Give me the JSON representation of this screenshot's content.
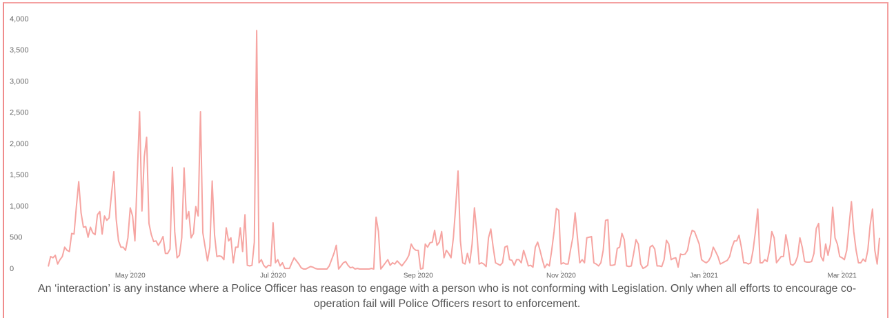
{
  "chart_data": {
    "type": "line",
    "color": "#f6a5a2",
    "xlim": [
      0,
      355
    ],
    "xticks": [
      {
        "value": 35,
        "label": "May 2020"
      },
      {
        "value": 96,
        "label": "Jul 2020"
      },
      {
        "value": 158,
        "label": "Sep 2020"
      },
      {
        "value": 219,
        "label": "Nov 2020"
      },
      {
        "value": 280,
        "label": "Jan 2021"
      },
      {
        "value": 339,
        "label": "Mar 2021"
      }
    ],
    "ylim": [
      0,
      4000
    ],
    "yticks": [
      0,
      500,
      {
        "value": 1000,
        "label": "1,000"
      },
      {
        "value": 1500,
        "label": "1,500"
      },
      {
        "value": 2000,
        "label": "2,000"
      },
      {
        "value": 2500,
        "label": "2,500"
      },
      {
        "value": 3000,
        "label": "3,000"
      },
      {
        "value": 3500,
        "label": "3,500"
      },
      {
        "value": 4000,
        "label": "4,000"
      }
    ],
    "grid": false,
    "values": [
      40,
      200,
      180,
      220,
      80,
      150,
      200,
      350,
      300,
      280,
      570,
      560,
      1000,
      1400,
      900,
      670,
      680,
      510,
      670,
      580,
      550,
      870,
      920,
      560,
      850,
      780,
      820,
      1200,
      1560,
      800,
      450,
      350,
      350,
      300,
      500,
      980,
      850,
      450,
      1500,
      2520,
      930,
      1800,
      2110,
      730,
      550,
      440,
      450,
      380,
      440,
      520,
      250,
      250,
      320,
      1630,
      600,
      180,
      220,
      500,
      1620,
      800,
      920,
      500,
      570,
      1000,
      850,
      2520,
      580,
      350,
      130,
      350,
      1410,
      550,
      200,
      210,
      200,
      150,
      660,
      450,
      500,
      100,
      350,
      350,
      660,
      280,
      870,
      60,
      50,
      60,
      430,
      3820,
      100,
      150,
      60,
      20,
      60,
      50,
      740,
      100,
      150,
      50,
      100,
      10,
      10,
      10,
      100,
      180,
      130,
      80,
      20,
      0,
      0,
      20,
      40,
      30,
      10,
      0,
      0,
      0,
      0,
      0,
      50,
      150,
      250,
      380,
      0,
      50,
      100,
      120,
      60,
      20,
      30,
      0,
      10,
      0,
      0,
      0,
      0,
      0,
      10,
      0,
      830,
      600,
      0,
      50,
      100,
      150,
      60,
      100,
      80,
      130,
      90,
      50,
      100,
      150,
      220,
      400,
      330,
      300,
      300,
      0,
      10,
      400,
      350,
      420,
      430,
      620,
      380,
      430,
      600,
      180,
      300,
      250,
      180,
      500,
      1000,
      1570,
      450,
      100,
      80,
      250,
      100,
      400,
      980,
      600,
      80,
      100,
      80,
      40,
      500,
      640,
      350,
      100,
      80,
      60,
      100,
      350,
      370,
      150,
      140,
      60,
      150,
      150,
      100,
      300,
      180,
      50,
      60,
      30,
      350,
      430,
      300,
      150,
      20,
      80,
      50,
      300,
      600,
      970,
      940,
      80,
      100,
      80,
      80,
      300,
      500,
      900,
      500,
      100,
      150,
      100,
      500,
      510,
      520,
      100,
      80,
      50,
      100,
      300,
      780,
      790,
      60,
      60,
      70,
      330,
      350,
      570,
      470,
      50,
      40,
      50,
      250,
      470,
      400,
      80,
      10,
      30,
      60,
      350,
      380,
      320,
      50,
      50,
      40,
      150,
      460,
      400,
      150,
      170,
      180,
      30,
      240,
      230,
      240,
      300,
      500,
      620,
      600,
      500,
      400,
      150,
      120,
      100,
      130,
      200,
      350,
      280,
      200,
      80,
      100,
      120,
      140,
      200,
      350,
      450,
      450,
      540,
      350,
      100,
      100,
      80,
      100,
      300,
      600,
      960,
      100,
      100,
      150,
      120,
      300,
      600,
      500,
      100,
      150,
      200,
      200,
      550,
      350,
      80,
      60,
      100,
      200,
      500,
      350,
      120,
      110,
      110,
      120,
      250,
      650,
      730,
      200,
      130,
      400,
      220,
      400,
      990,
      500,
      400,
      200,
      180,
      150,
      300,
      700,
      1080,
      600,
      300,
      100,
      100,
      160,
      120,
      300,
      700,
      960,
      300,
      80,
      500
    ]
  },
  "caption": "An ‘interaction’ is any instance where a Police Officer has reason to engage with a person who is not conforming with Legislation. Only when all efforts to encourage co-operation fail will Police Officers resort to enforcement."
}
